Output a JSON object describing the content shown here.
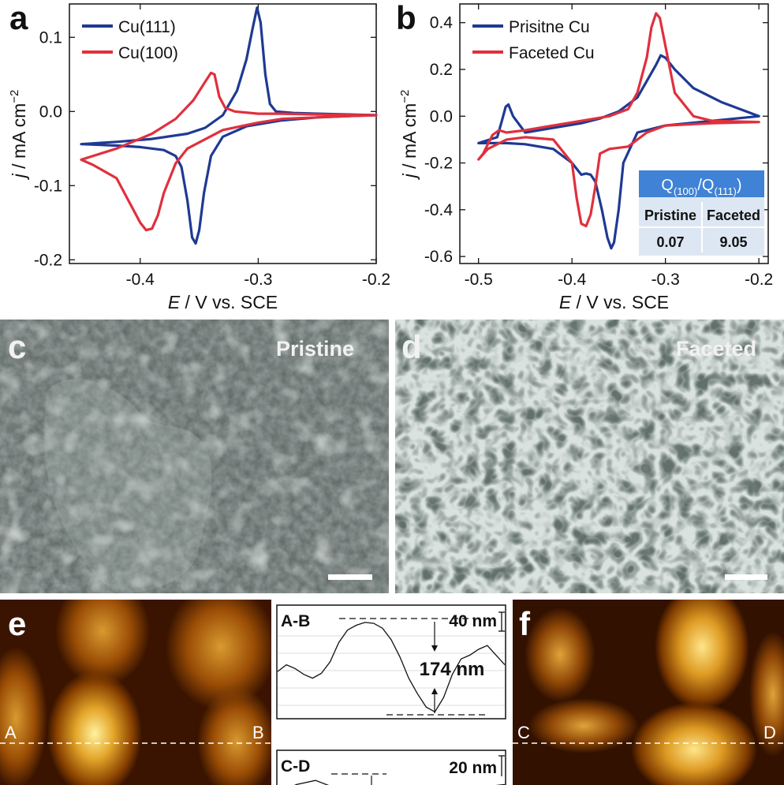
{
  "chart_data": [
    {
      "panel": "a",
      "type": "line",
      "xlabel_italic": "E",
      "xlabel_rest": " / V vs. SCE",
      "ylabel_italic": "j",
      "ylabel_rest": " / mA cm",
      "ylabel_sup": "−2",
      "xlim": [
        -0.46,
        -0.2
      ],
      "ylim": [
        -0.205,
        0.145
      ],
      "xticks": [
        -0.4,
        -0.3,
        -0.2
      ],
      "xtick_labels": [
        "-0.4",
        "-0.3",
        "-0.2"
      ],
      "yticks": [
        -0.2,
        -0.1,
        0.0,
        0.1
      ],
      "ytick_labels": [
        "-0.2",
        "-0.1",
        "0.0",
        "0.1"
      ],
      "legend_position": "top-left",
      "series": [
        {
          "name": "Cu(111)",
          "color": "#1f3a93",
          "x": [
            -0.45,
            -0.42,
            -0.39,
            -0.36,
            -0.345,
            -0.33,
            -0.318,
            -0.31,
            -0.305,
            -0.301,
            -0.298,
            -0.294,
            -0.29,
            -0.285,
            -0.27,
            -0.25,
            -0.2,
            -0.22,
            -0.25,
            -0.28,
            -0.31,
            -0.33,
            -0.34,
            -0.346,
            -0.35,
            -0.353,
            -0.356,
            -0.36,
            -0.365,
            -0.37,
            -0.38,
            -0.4,
            -0.42,
            -0.45
          ],
          "y": [
            -0.044,
            -0.041,
            -0.037,
            -0.03,
            -0.022,
            -0.005,
            0.028,
            0.07,
            0.11,
            0.14,
            0.12,
            0.05,
            0.01,
            0.0,
            -0.002,
            -0.003,
            -0.005,
            -0.006,
            -0.008,
            -0.012,
            -0.02,
            -0.034,
            -0.06,
            -0.11,
            -0.16,
            -0.178,
            -0.17,
            -0.12,
            -0.075,
            -0.06,
            -0.052,
            -0.048,
            -0.046,
            -0.044
          ]
        },
        {
          "name": "Cu(100)",
          "color": "#e0303d",
          "x": [
            -0.45,
            -0.42,
            -0.39,
            -0.37,
            -0.355,
            -0.345,
            -0.34,
            -0.337,
            -0.333,
            -0.328,
            -0.32,
            -0.3,
            -0.28,
            -0.25,
            -0.2,
            -0.22,
            -0.25,
            -0.28,
            -0.3,
            -0.33,
            -0.36,
            -0.37,
            -0.38,
            -0.385,
            -0.39,
            -0.395,
            -0.4,
            -0.41,
            -0.42,
            -0.44,
            -0.45
          ],
          "y": [
            -0.065,
            -0.05,
            -0.03,
            -0.01,
            0.015,
            0.04,
            0.052,
            0.05,
            0.02,
            0.005,
            0.0,
            -0.003,
            -0.003,
            -0.004,
            -0.005,
            -0.006,
            -0.008,
            -0.01,
            -0.015,
            -0.025,
            -0.05,
            -0.07,
            -0.11,
            -0.14,
            -0.158,
            -0.16,
            -0.15,
            -0.12,
            -0.09,
            -0.072,
            -0.065
          ]
        }
      ]
    },
    {
      "panel": "b",
      "type": "line",
      "xlabel_italic": "E",
      "xlabel_rest": " / V vs. SCE",
      "ylabel_italic": "j",
      "ylabel_rest": " / mA cm",
      "ylabel_sup": "−2",
      "xlim": [
        -0.52,
        -0.19
      ],
      "ylim": [
        -0.63,
        0.48
      ],
      "xticks": [
        -0.5,
        -0.4,
        -0.3,
        -0.2
      ],
      "xtick_labels": [
        "-0.5",
        "-0.4",
        "-0.3",
        "-0.2"
      ],
      "yticks": [
        -0.6,
        -0.4,
        -0.2,
        0.0,
        0.2,
        0.4
      ],
      "ytick_labels": [
        "-0.6",
        "-0.4",
        "-0.2",
        "0.0",
        "0.2",
        "0.4"
      ],
      "legend_position": "top-left",
      "series": [
        {
          "name": "Prisitne Cu",
          "color": "#1f3a93",
          "x": [
            -0.5,
            -0.48,
            -0.475,
            -0.471,
            -0.468,
            -0.463,
            -0.45,
            -0.42,
            -0.39,
            -0.37,
            -0.35,
            -0.33,
            -0.32,
            -0.31,
            -0.305,
            -0.3,
            -0.29,
            -0.27,
            -0.24,
            -0.2,
            -0.25,
            -0.3,
            -0.33,
            -0.345,
            -0.35,
            -0.355,
            -0.358,
            -0.362,
            -0.368,
            -0.375,
            -0.38,
            -0.385,
            -0.39,
            -0.4,
            -0.42,
            -0.45,
            -0.47,
            -0.49,
            -0.5
          ],
          "y": [
            -0.115,
            -0.09,
            -0.02,
            0.04,
            0.05,
            0.0,
            -0.07,
            -0.05,
            -0.03,
            -0.01,
            0.02,
            0.08,
            0.15,
            0.22,
            0.26,
            0.25,
            0.2,
            0.12,
            0.06,
            0.0,
            -0.02,
            -0.04,
            -0.07,
            -0.2,
            -0.4,
            -0.54,
            -0.565,
            -0.52,
            -0.4,
            -0.28,
            -0.25,
            -0.245,
            -0.25,
            -0.2,
            -0.14,
            -0.12,
            -0.115,
            -0.115,
            -0.115
          ]
        },
        {
          "name": "Faceted Cu",
          "color": "#e0303d",
          "x": [
            -0.5,
            -0.495,
            -0.49,
            -0.485,
            -0.478,
            -0.47,
            -0.45,
            -0.42,
            -0.39,
            -0.36,
            -0.34,
            -0.33,
            -0.32,
            -0.315,
            -0.31,
            -0.306,
            -0.3,
            -0.29,
            -0.27,
            -0.25,
            -0.2,
            -0.25,
            -0.3,
            -0.32,
            -0.34,
            -0.36,
            -0.37,
            -0.375,
            -0.38,
            -0.385,
            -0.39,
            -0.395,
            -0.4,
            -0.42,
            -0.45,
            -0.47,
            -0.49,
            -0.5
          ],
          "y": [
            -0.185,
            -0.16,
            -0.12,
            -0.08,
            -0.06,
            -0.07,
            -0.06,
            -0.04,
            -0.02,
            0.0,
            0.03,
            0.1,
            0.25,
            0.38,
            0.44,
            0.42,
            0.3,
            0.1,
            0.0,
            -0.02,
            -0.025,
            -0.03,
            -0.04,
            -0.07,
            -0.13,
            -0.14,
            -0.16,
            -0.3,
            -0.42,
            -0.47,
            -0.46,
            -0.35,
            -0.2,
            -0.1,
            -0.09,
            -0.1,
            -0.14,
            -0.185
          ]
        }
      ],
      "table": {
        "header": "Q(100)/Q(111)",
        "header_q1": "Q",
        "header_sub1": "(100)",
        "header_sep": "/Q",
        "header_sub2": "(111)",
        "col_labels": [
          "Pristine",
          "Faceted"
        ],
        "values": [
          "0.07",
          "9.05"
        ]
      }
    },
    {
      "panel": "e-profile",
      "type": "line",
      "label": "A-B",
      "top_label": "40 nm",
      "mid_label": "174 nm",
      "y": [
        0.45,
        0.52,
        0.48,
        0.42,
        0.38,
        0.43,
        0.55,
        0.75,
        0.88,
        0.93,
        0.96,
        0.95,
        0.9,
        0.78,
        0.6,
        0.38,
        0.22,
        0.08,
        0.03,
        0.18,
        0.42,
        0.58,
        0.62,
        0.68,
        0.72,
        0.62,
        0.52
      ]
    },
    {
      "panel": "f-profile",
      "type": "line",
      "label": "C-D",
      "top_label": "20 nm",
      "y": [
        0.2,
        0.6,
        0.8,
        0.45,
        0.3,
        0.35,
        0.28,
        0.25,
        0.3,
        0.45,
        0.35,
        0.5,
        0.6
      ]
    }
  ],
  "panels": {
    "a": {
      "label": "a"
    },
    "b": {
      "label": "b"
    },
    "c": {
      "label": "c",
      "caption": "Pristine"
    },
    "d": {
      "label": "d",
      "caption": "Faceted"
    },
    "e": {
      "label": "e",
      "left_marker": "A",
      "right_marker": "B"
    },
    "f": {
      "label": "f",
      "left_marker": "C",
      "right_marker": "D"
    }
  },
  "colors": {
    "axis": "#111111",
    "pristine_blue": "#1f3a93",
    "faceted_red": "#e0303d",
    "table_header": "#3f82d6",
    "table_body": "#dde7f3"
  }
}
